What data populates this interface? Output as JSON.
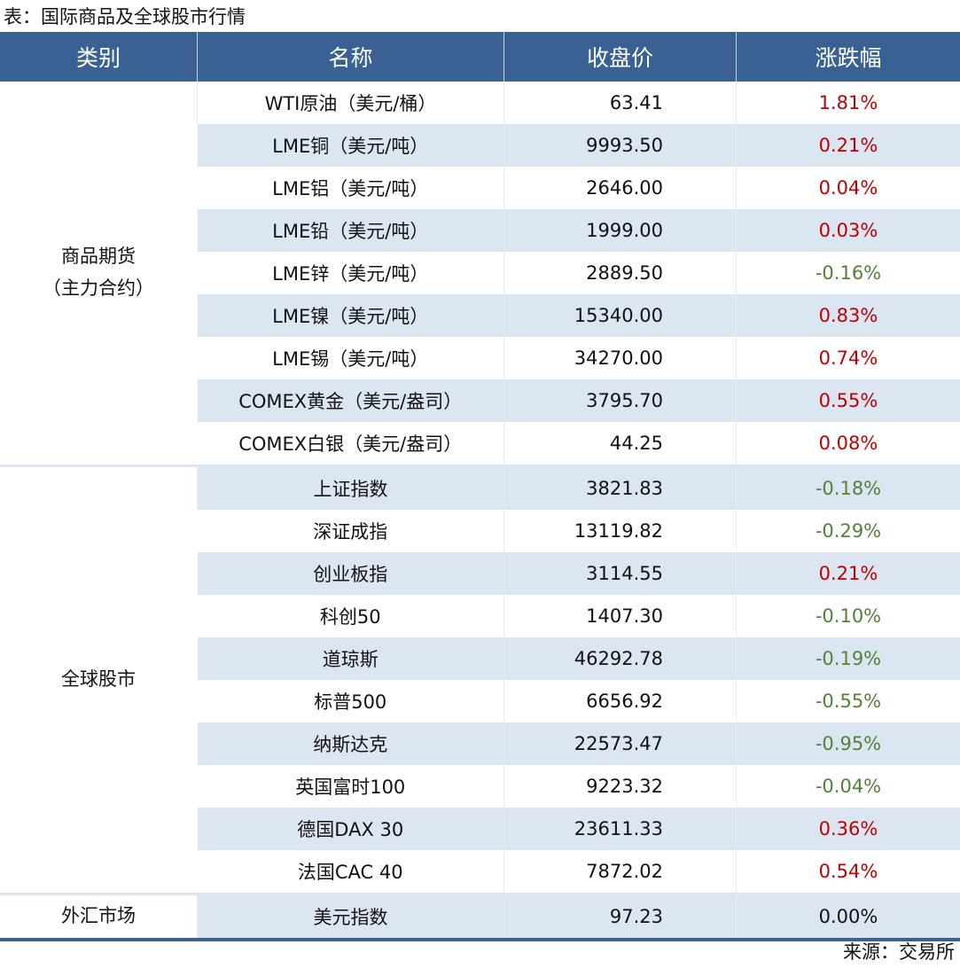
{
  "title": "表：国际商品及全球股市行情",
  "headers": [
    "类别",
    "名称",
    "收盘价",
    "涨跌幅"
  ],
  "colors": {
    "up": "#c00000",
    "down": "#548235",
    "flat": "#111111",
    "header_bg": "#3a6193",
    "stripe": "#dce6f2"
  },
  "groups": [
    {
      "category": [
        "商品期货",
        "（主力合约）"
      ],
      "rows": [
        [
          "WTI原油（美元/桶）",
          "63.41",
          "1.81%"
        ],
        [
          "LME铜（美元/吨）",
          "9993.50",
          "0.21%"
        ],
        [
          "LME铝（美元/吨）",
          "2646.00",
          "0.04%"
        ],
        [
          "LME铅（美元/吨）",
          "1999.00",
          "0.03%"
        ],
        [
          "LME锌（美元/吨）",
          "2889.50",
          "-0.16%"
        ],
        [
          "LME镍（美元/吨）",
          "15340.00",
          "0.83%"
        ],
        [
          "LME锡（美元/吨）",
          "34270.00",
          "0.74%"
        ],
        [
          "COMEX黄金（美元/盎司）",
          "3795.70",
          "0.55%"
        ],
        [
          "COMEX白银（美元/盎司）",
          "44.25",
          "0.08%"
        ]
      ]
    },
    {
      "category": [
        "全球股市"
      ],
      "rows": [
        [
          "上证指数",
          "3821.83",
          "-0.18%"
        ],
        [
          "深证成指",
          "13119.82",
          "-0.29%"
        ],
        [
          "创业板指",
          "3114.55",
          "0.21%"
        ],
        [
          "科创50",
          "1407.30",
          "-0.10%"
        ],
        [
          "道琼斯",
          "46292.78",
          "-0.19%"
        ],
        [
          "标普500",
          "6656.92",
          "-0.55%"
        ],
        [
          "纳斯达克",
          "22573.47",
          "-0.95%"
        ],
        [
          "英国富时100",
          "9223.32",
          "-0.04%"
        ],
        [
          "德国DAX 30",
          "23611.33",
          "0.36%"
        ],
        [
          "法国CAC 40",
          "7872.02",
          "0.54%"
        ]
      ]
    },
    {
      "category": [
        "外汇市场"
      ],
      "rows": [
        [
          "美元指数",
          "97.23",
          "0.00%"
        ]
      ]
    }
  ],
  "source": "来源：交易所"
}
